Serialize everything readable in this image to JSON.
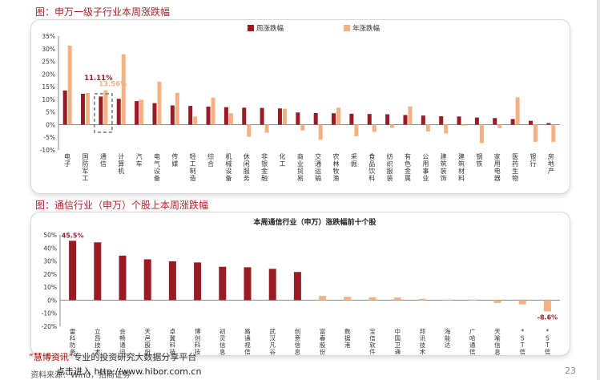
{
  "section1_title": "图：申万一级子行业本周涨跌幅",
  "section2_title": "图：通信行业（申万）个股上本周涨跌幅",
  "footer": {
    "line1_brand": "“慧博资讯”",
    "line1_rest": "专业的投资研究大数据分享平台",
    "line2_source": "资料来源：Wind，招商证券",
    "line2_link": "点击进入  http://www.hibor.com.cn",
    "page": "23"
  },
  "colors": {
    "weekly": "#9b1b25",
    "annual": "#f4b183",
    "title_red": "#b3202a",
    "highlight_box": "#7f7f7f"
  },
  "chart_data": [
    {
      "type": "bar",
      "title": "",
      "legend": [
        "周涨跌幅",
        "年涨跌幅"
      ],
      "legend_position": "top-center",
      "ylim": [
        -10,
        35
      ],
      "yticks": [
        "35%",
        "30%",
        "25%",
        "20%",
        "15%",
        "10%",
        "5%",
        "0%",
        "-5%",
        "-10%"
      ],
      "grid": false,
      "categories": [
        "电子",
        "国防军工",
        "通信",
        "计算机",
        "汽车",
        "电气设备",
        "传媒",
        "轻工制造",
        "综合",
        "机械设备",
        "休闲服务",
        "非银金融",
        "化工",
        "商业贸易",
        "交通运输",
        "农林牧渔",
        "采掘",
        "食品饮料",
        "纺织服装",
        "有色金属",
        "公用事业",
        "建筑装饰",
        "建筑材料",
        "钢铁",
        "家用电器",
        "医药生物",
        "银行",
        "房地产"
      ],
      "series": [
        {
          "name": "周涨跌幅",
          "values": [
            13.5,
            12.2,
            11.11,
            10.2,
            9.3,
            8.5,
            7.6,
            7.4,
            7.1,
            6.9,
            6.7,
            6.6,
            6.4,
            4.8,
            4.6,
            4.5,
            4.3,
            4.2,
            4.1,
            3.8,
            3.6,
            3.3,
            3.2,
            2.8,
            2.6,
            2.2,
            1.5,
            0.6
          ]
        },
        {
          "name": "年涨跌幅",
          "values": [
            31.2,
            12.5,
            13.56,
            27.8,
            9.8,
            17.0,
            12.6,
            3.2,
            10.7,
            4.5,
            -4.8,
            -3.2,
            6.3,
            -2.3,
            -5.9,
            6.7,
            -4.6,
            -2.9,
            -1.3,
            7.2,
            -2.7,
            -3.5,
            -0.4,
            -7.3,
            -1.4,
            10.8,
            -6.8,
            -6.8
          ]
        }
      ],
      "annotations": [
        "11.11%",
        "13.56%"
      ],
      "highlight_category": "通信"
    },
    {
      "type": "bar",
      "title": "本周通信行业（申万）涨跌幅前十个股",
      "ylim": [
        -20,
        50
      ],
      "yticks": [
        "50%",
        "40%",
        "30%",
        "20%",
        "10%",
        "0%",
        "-10%",
        "-20%"
      ],
      "grid": false,
      "categories": [
        "雷科防务",
        "立昂技术",
        "会畅通讯",
        "天邑股份",
        "卓翼科技",
        "博创科技",
        "初灵信息",
        "路通视信",
        "武汉凡谷",
        "创意信息",
        "富春股份",
        "数据港",
        "宝信软件",
        "中国卫通",
        "邦讯技术",
        "海能达",
        "广哈通信",
        "天喻信息",
        "*ST信通",
        "*ST信威"
      ],
      "series": [
        {
          "values": [
            45.5,
            44.3,
            34.1,
            31.3,
            29.8,
            28.9,
            25.6,
            25.2,
            24.0,
            21.6,
            3.2,
            2.6,
            2.3,
            2.0,
            1.0,
            0.5,
            0.4,
            -2.1,
            -3.2,
            -8.6
          ]
        }
      ],
      "data_labels": [
        "45.5%",
        "-8.6%"
      ]
    }
  ]
}
